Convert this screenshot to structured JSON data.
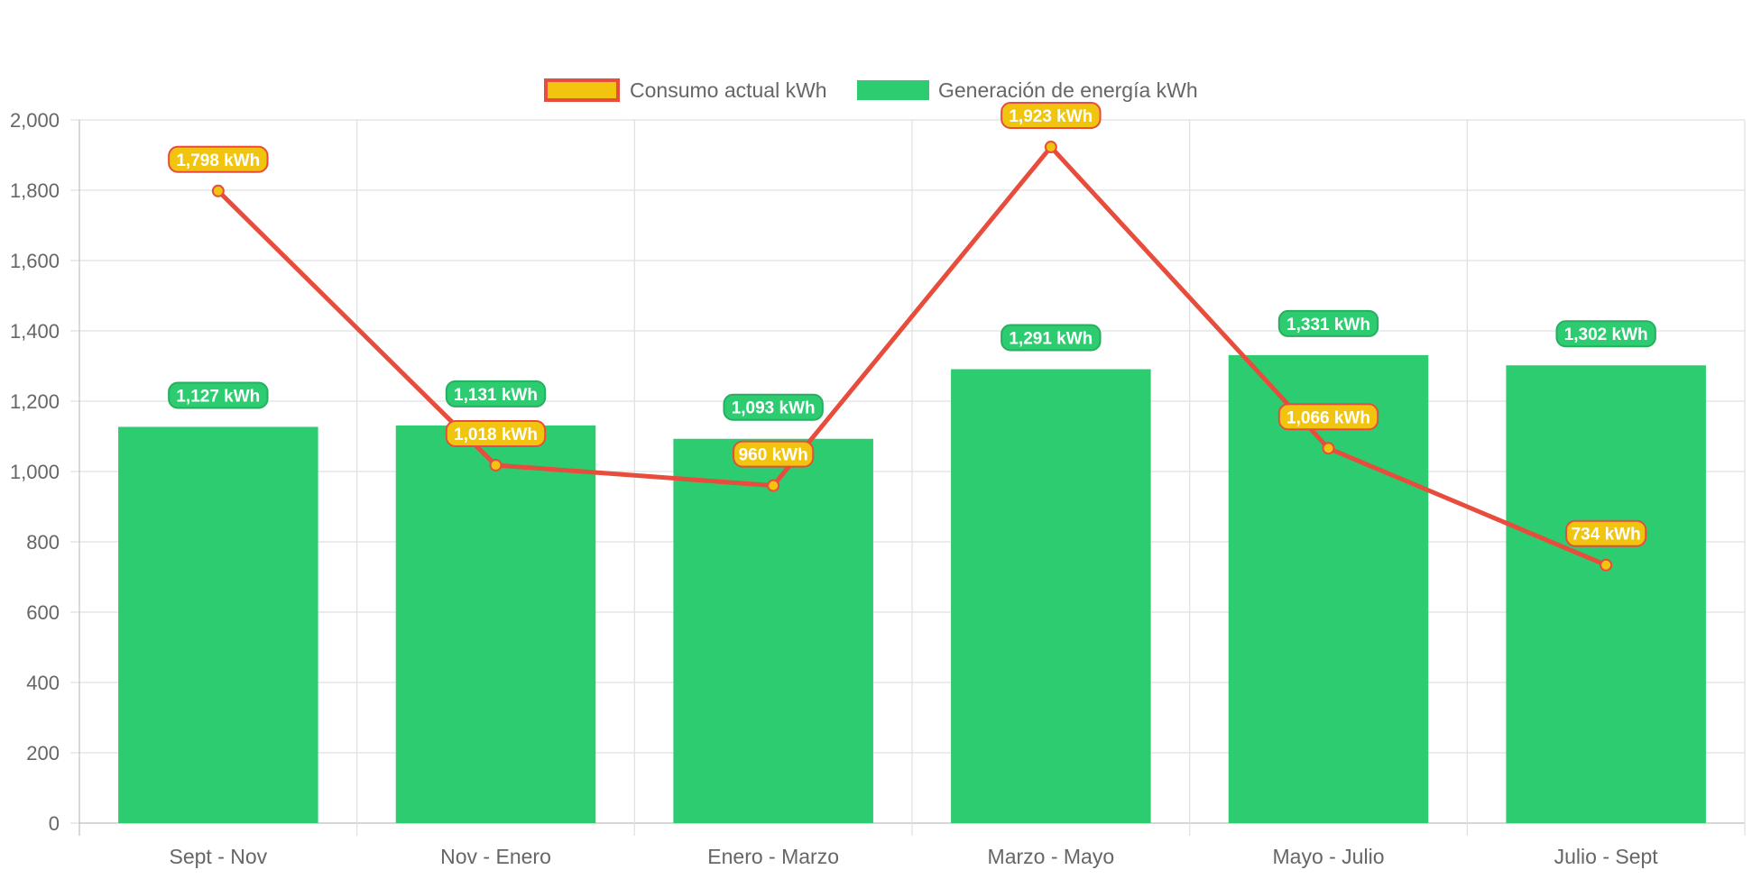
{
  "chart_data": {
    "type": "bar",
    "categories": [
      "Sept - Nov",
      "Nov - Enero",
      "Enero - Marzo",
      "Marzo - Mayo",
      "Mayo - Julio",
      "Julio - Sept"
    ],
    "series": [
      {
        "name": "Consumo actual kWh",
        "type": "line",
        "values": [
          1798,
          1018,
          960,
          1923,
          1066,
          734
        ],
        "color": "#e74c3c",
        "point_fill": "#f1c40f",
        "labels": [
          "1,798 kWh",
          "1,018 kWh",
          "960 kWh",
          "1,923 kWh",
          "1,066 kWh",
          "734 kWh"
        ]
      },
      {
        "name": "Generación de energía kWh",
        "type": "bar",
        "values": [
          1127,
          1131,
          1093,
          1291,
          1331,
          1302
        ],
        "color": "#2ecc71",
        "labels": [
          "1,127 kWh",
          "1,131 kWh",
          "1,093 kWh",
          "1,291 kWh",
          "1,331 kWh",
          "1,302 kWh"
        ]
      }
    ],
    "y_ticks": [
      "0",
      "200",
      "400",
      "600",
      "800",
      "1,000",
      "1,200",
      "1,400",
      "1,600",
      "1,800",
      "2,000"
    ],
    "ylim": [
      0,
      2000
    ],
    "grid": true,
    "legend_position": "top-center",
    "title": "",
    "xlabel": "",
    "ylabel": ""
  }
}
